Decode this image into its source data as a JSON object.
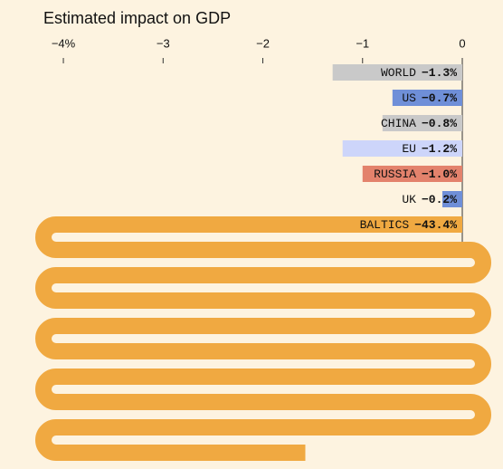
{
  "chart_data": {
    "type": "bar",
    "title": "Estimated impact on GDP",
    "categories": [
      "WORLD",
      "US",
      "CHINA",
      "EU",
      "RUSSIA",
      "UK",
      "BALTICS"
    ],
    "values": [
      -1.3,
      -0.7,
      -0.8,
      -1.2,
      -1.0,
      -0.2,
      -43.4
    ],
    "value_labels": [
      "−1.3%",
      "−0.7%",
      "−0.8%",
      "−1.2%",
      "−1.0%",
      "−0.2%",
      "−43.4%"
    ],
    "colors": [
      "#c9c9c9",
      "#6f8fd8",
      "#c9c9c9",
      "#cdd5fa",
      "#e3826c",
      "#6f8fd8",
      "#f0a941"
    ],
    "xlim": [
      -4.2,
      0
    ],
    "xticks": [
      {
        "value": -4,
        "label": "−4%"
      },
      {
        "value": -3,
        "label": "−3"
      },
      {
        "value": -2,
        "label": "−2"
      },
      {
        "value": -1,
        "label": "−1"
      },
      0
    ]
  }
}
